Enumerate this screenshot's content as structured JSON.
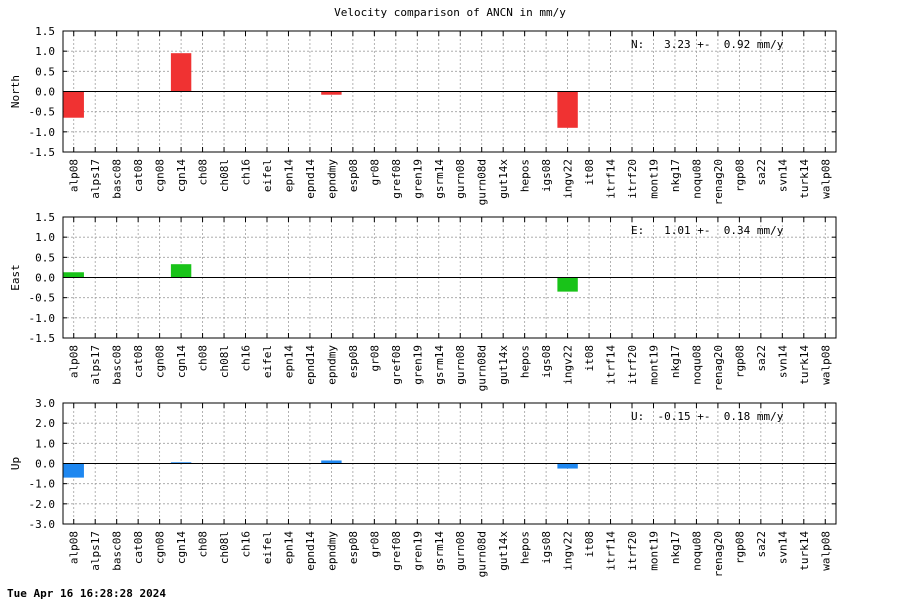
{
  "title": "Velocity comparison of ANCN in mm/y",
  "footer": "Tue Apr 16 16:28:28 2024",
  "chart_data": [
    {
      "type": "bar",
      "ylabel": "North",
      "ylim": [
        -1.5,
        1.5
      ],
      "yticks": [
        "1.5",
        "1.0",
        "0.5",
        "0.0",
        "-0.5",
        "-1.0",
        "-1.5"
      ],
      "color": "#f03232",
      "grid": true,
      "annotation": "N:   3.23 +-  0.92 mm/y",
      "categories": [
        "alp08",
        "alps17",
        "basc08",
        "cat08",
        "cgn08",
        "cgn14",
        "ch08",
        "ch08l",
        "ch16",
        "eifel",
        "epn14",
        "epnd14",
        "epndmy",
        "esp08",
        "gr08",
        "gref08",
        "gren19",
        "gsrm14",
        "gurn08",
        "gurn08d",
        "gut14x",
        "hepos",
        "igs08",
        "ingv22",
        "it08",
        "itrf14",
        "itrf20",
        "mont19",
        "nkg17",
        "noqu08",
        "renag20",
        "rgp08",
        "sa22",
        "svn14",
        "turk14",
        "walp08"
      ],
      "values": [
        -0.65,
        0,
        0,
        0,
        0,
        0.95,
        0,
        0,
        0,
        0,
        0,
        0,
        -0.08,
        0,
        0,
        0,
        0,
        0,
        0,
        0,
        0,
        0,
        0,
        -0.9,
        0,
        0,
        0,
        0,
        0,
        0,
        0,
        0,
        0,
        0,
        0,
        0
      ]
    },
    {
      "type": "bar",
      "ylabel": "East",
      "ylim": [
        -1.5,
        1.5
      ],
      "yticks": [
        "1.5",
        "1.0",
        "0.5",
        "0.0",
        "-0.5",
        "-1.0",
        "-1.5"
      ],
      "color": "#19c319",
      "grid": true,
      "annotation": "E:   1.01 +-  0.34 mm/y",
      "categories": [
        "alp08",
        "alps17",
        "basc08",
        "cat08",
        "cgn08",
        "cgn14",
        "ch08",
        "ch08l",
        "ch16",
        "eifel",
        "epn14",
        "epnd14",
        "epndmy",
        "esp08",
        "gr08",
        "gref08",
        "gren19",
        "gsrm14",
        "gurn08",
        "gurn08d",
        "gut14x",
        "hepos",
        "igs08",
        "ingv22",
        "it08",
        "itrf14",
        "itrf20",
        "mont19",
        "nkg17",
        "noqu08",
        "renag20",
        "rgp08",
        "sa22",
        "svn14",
        "turk14",
        "walp08"
      ],
      "values": [
        0.13,
        0,
        0,
        0,
        0,
        0.33,
        0,
        0,
        0,
        0,
        0,
        0,
        0,
        0,
        0,
        0,
        0,
        0,
        0,
        0,
        0,
        0,
        0,
        -0.35,
        0,
        0,
        0,
        0,
        0,
        0,
        0,
        0,
        0,
        0,
        0,
        0
      ]
    },
    {
      "type": "bar",
      "ylabel": "Up",
      "ylim": [
        -3.0,
        3.0
      ],
      "yticks": [
        "3.0",
        "2.0",
        "1.0",
        "0.0",
        "-1.0",
        "-2.0",
        "-3.0"
      ],
      "color": "#1e87f0",
      "grid": true,
      "annotation": "U:  -0.15 +-  0.18 mm/y",
      "categories": [
        "alp08",
        "alps17",
        "basc08",
        "cat08",
        "cgn08",
        "cgn14",
        "ch08",
        "ch08l",
        "ch16",
        "eifel",
        "epn14",
        "epnd14",
        "epndmy",
        "esp08",
        "gr08",
        "gref08",
        "gren19",
        "gsrm14",
        "gurn08",
        "gurn08d",
        "gut14x",
        "hepos",
        "igs08",
        "ingv22",
        "it08",
        "itrf14",
        "itrf20",
        "mont19",
        "nkg17",
        "noqu08",
        "renag20",
        "rgp08",
        "sa22",
        "svn14",
        "turk14",
        "walp08"
      ],
      "values": [
        -0.7,
        0,
        0,
        0,
        0,
        0.06,
        0,
        0,
        0,
        0,
        0,
        0,
        0.15,
        0,
        0,
        0,
        0,
        0,
        0,
        0,
        0,
        0,
        0,
        -0.25,
        0,
        0,
        0,
        0,
        0,
        0,
        0,
        0,
        0,
        0,
        0,
        0
      ]
    }
  ]
}
